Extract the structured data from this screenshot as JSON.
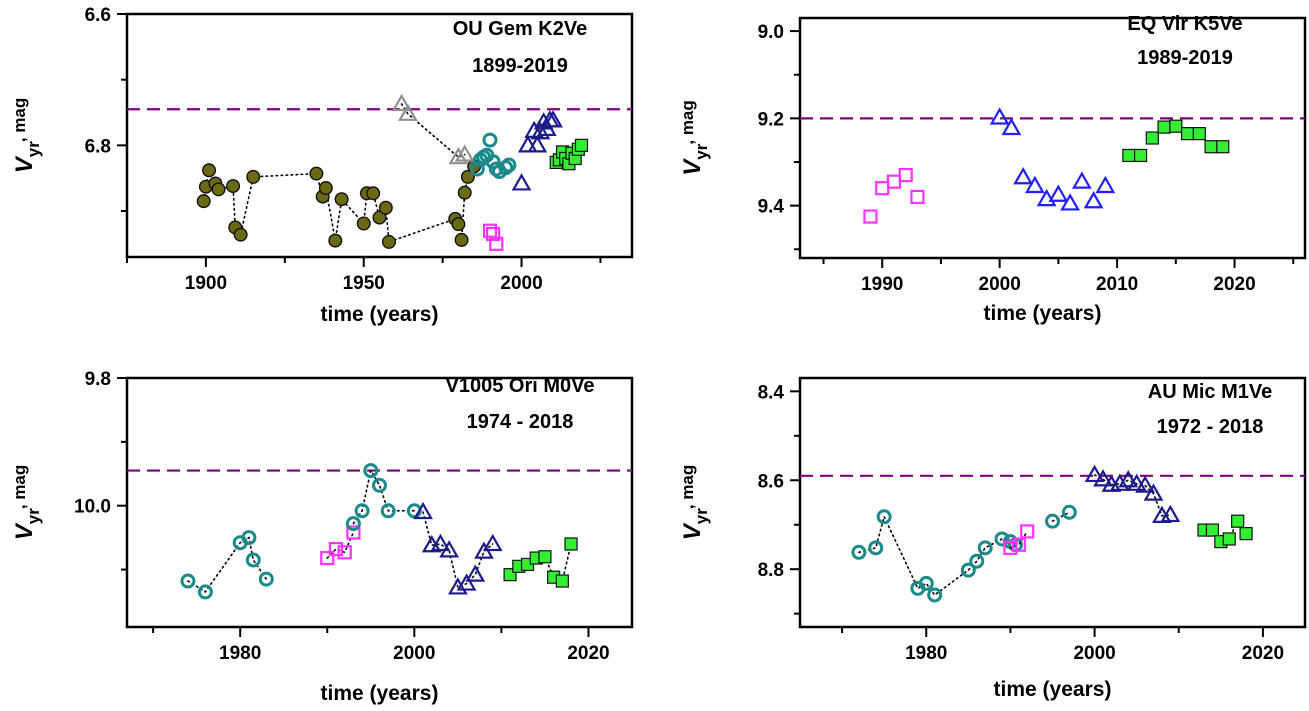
{
  "chart_data": [
    {
      "type": "scatter",
      "title": "OU Gem  K2Ve",
      "subtitle": "1899-2019",
      "xlabel": "time (years)",
      "ylabel": "V",
      "ylabel_sub": "yr",
      "ylabel_unit": ", mag",
      "xlim": [
        1875,
        2035
      ],
      "ylim": [
        6.6,
        6.97
      ],
      "y_inverted": true,
      "xticks": [
        1900,
        1950,
        2000
      ],
      "yticks": [
        6.6,
        6.8
      ],
      "ytick_labels": [
        "6.6",
        "6.8"
      ],
      "reference_line": 6.745,
      "reference_color": "#800080",
      "colors": {
        "olive": "#6b6a12",
        "gray": "#909090",
        "teal": "#1b8a8a",
        "navy": "#1c1c8c",
        "magenta": "#ff33ff",
        "green": "#33ee33"
      },
      "series": [
        {
          "marker": "filled-circle",
          "color": "olive",
          "connected": true,
          "x": [
            1899.3,
            1900,
            1901,
            1903,
            1904,
            1908.6,
            1909.3,
            1911,
            1915,
            1935,
            1937,
            1938,
            1941,
            1943,
            1950,
            1951,
            1953,
            1955,
            1957,
            1958,
            1979,
            1980,
            1981,
            1982,
            1983,
            1985
          ],
          "y": [
            6.885,
            6.863,
            6.838,
            6.858,
            6.867,
            6.862,
            6.925,
            6.936,
            6.848,
            6.843,
            6.878,
            6.865,
            6.945,
            6.882,
            6.919,
            6.873,
            6.873,
            6.91,
            6.895,
            6.947,
            6.912,
            6.92,
            6.944,
            6.872,
            6.848,
            6.832
          ]
        },
        {
          "marker": "open-triangle",
          "color": "gray",
          "connected": true,
          "x": [
            1962,
            1964,
            1980,
            1982
          ],
          "y": [
            6.737,
            6.752,
            6.818,
            6.814
          ]
        },
        {
          "marker": "open-circle",
          "color": "teal",
          "connected": false,
          "x": [
            1986,
            1987,
            1988,
            1989,
            1990,
            1991,
            1992,
            1993,
            1995,
            1996
          ],
          "y": [
            6.836,
            6.822,
            6.818,
            6.815,
            6.792,
            6.825,
            6.836,
            6.84,
            6.834,
            6.83
          ]
        },
        {
          "marker": "open-square",
          "color": "magenta",
          "connected": false,
          "x": [
            1990,
            1991,
            1992
          ],
          "y": [
            6.93,
            6.935,
            6.95
          ]
        },
        {
          "marker": "open-triangle",
          "color": "navy",
          "connected": false,
          "x": [
            2000,
            2002,
            2004,
            2005,
            2006,
            2007,
            2008,
            2009,
            2010
          ],
          "y": [
            6.858,
            6.8,
            6.778,
            6.8,
            6.78,
            6.765,
            6.775,
            6.762,
            6.762
          ]
        },
        {
          "marker": "filled-square",
          "color": "green",
          "connected": false,
          "x": [
            2011,
            2012,
            2013,
            2014,
            2015,
            2016,
            2017,
            2018,
            2019
          ],
          "y": [
            6.826,
            6.822,
            6.81,
            6.82,
            6.828,
            6.812,
            6.82,
            6.806,
            6.8
          ]
        }
      ]
    },
    {
      "type": "scatter",
      "title": "EQ Vir   K5Ve",
      "subtitle": "1989-2019",
      "xlabel": "time (years)",
      "ylabel": "V",
      "ylabel_sub": "yr",
      "ylabel_unit": ", mag",
      "xlim": [
        1983,
        2026
      ],
      "ylim": [
        8.97,
        9.52
      ],
      "y_inverted": true,
      "xticks": [
        1990,
        2000,
        2010,
        2020
      ],
      "yticks": [
        9.0,
        9.2,
        9.4
      ],
      "ytick_labels": [
        "9.0",
        "9.2",
        "9.4"
      ],
      "reference_line": 9.2,
      "reference_color": "#800080",
      "colors": {
        "navy": "#1c1c8c",
        "blue": "#1f1fff",
        "magenta": "#ff33ff",
        "green": "#33ee33"
      },
      "series": [
        {
          "marker": "open-square",
          "color": "magenta",
          "connected": false,
          "x": [
            1989,
            1990,
            1991,
            1992,
            1993
          ],
          "y": [
            9.425,
            9.36,
            9.345,
            9.33,
            9.38
          ]
        },
        {
          "marker": "open-triangle",
          "color": "blue",
          "connected": false,
          "x": [
            2000,
            2001,
            2002,
            2003,
            2004,
            2005,
            2006,
            2007,
            2008,
            2009
          ],
          "y": [
            9.198,
            9.222,
            9.335,
            9.355,
            9.385,
            9.375,
            9.395,
            9.345,
            9.39,
            9.355
          ]
        },
        {
          "marker": "filled-square",
          "color": "green",
          "connected": false,
          "x": [
            2011,
            2012,
            2013,
            2014,
            2015,
            2016,
            2017,
            2018,
            2019
          ],
          "y": [
            9.285,
            9.285,
            9.245,
            9.22,
            9.218,
            9.235,
            9.235,
            9.265,
            9.265
          ]
        }
      ]
    },
    {
      "type": "scatter",
      "title": "V1005 Ori  M0Ve",
      "subtitle": "1974 - 2018",
      "xlabel": "time (years)",
      "ylabel": "V",
      "ylabel_sub": "yr",
      "ylabel_unit": ", mag",
      "xlim": [
        1967,
        2025
      ],
      "ylim": [
        9.8,
        10.19
      ],
      "y_inverted": true,
      "xticks": [
        1980,
        2000,
        2020
      ],
      "yticks": [
        9.8,
        10.0
      ],
      "ytick_labels": [
        "9.8",
        "10.0"
      ],
      "reference_line": 9.945,
      "reference_color": "#800080",
      "colors": {
        "teal": "#1b8a8a",
        "navy": "#1c1c8c",
        "magenta": "#ff33ff",
        "green": "#33ee33"
      },
      "series": [
        {
          "marker": "open-circle",
          "color": "teal",
          "connected": true,
          "x": [
            1974,
            1976,
            1980,
            1981,
            1981.5,
            1983
          ],
          "y": [
            10.118,
            10.135,
            10.058,
            10.05,
            10.085,
            10.115
          ]
        },
        {
          "marker": "open-square",
          "color": "magenta",
          "connected": true,
          "x": [
            1990,
            1991,
            1992,
            1993
          ],
          "y": [
            10.082,
            10.068,
            10.073,
            10.042
          ]
        },
        {
          "marker": "open-circle",
          "color": "teal",
          "connected": true,
          "x": [
            1993,
            1994,
            1995,
            1996,
            1997,
            2000
          ],
          "y": [
            10.028,
            10.008,
            9.945,
            9.968,
            10.008,
            10.008
          ]
        },
        {
          "marker": "open-triangle",
          "color": "navy",
          "connected": true,
          "x": [
            2001,
            2002,
            2003,
            2004,
            2005,
            2006,
            2007,
            2008,
            2009
          ],
          "y": [
            10.01,
            10.062,
            10.06,
            10.07,
            10.128,
            10.122,
            10.108,
            10.072,
            10.06
          ]
        },
        {
          "marker": "filled-square",
          "color": "green",
          "connected": true,
          "x": [
            2011,
            2012,
            2013,
            2014,
            2015,
            2016,
            2017,
            2018
          ],
          "y": [
            10.108,
            10.095,
            10.092,
            10.082,
            10.08,
            10.112,
            10.118,
            10.06
          ]
        }
      ]
    },
    {
      "type": "scatter",
      "title": "AU Mic  M1Ve",
      "subtitle": "1972 - 2018",
      "xlabel": "time (years)",
      "ylabel": "V",
      "ylabel_sub": "yr",
      "ylabel_unit": ", mag",
      "xlim": [
        1965,
        2025
      ],
      "ylim": [
        8.37,
        8.93
      ],
      "y_inverted": true,
      "xticks": [
        1980,
        2000,
        2020
      ],
      "yticks": [
        8.4,
        8.6,
        8.8
      ],
      "ytick_labels": [
        "8.4",
        "8.6",
        "8.8"
      ],
      "reference_line": 8.59,
      "reference_color": "#800080",
      "colors": {
        "teal": "#1b8a8a",
        "navy": "#1c1c8c",
        "magenta": "#ff33ff",
        "green": "#33ee33"
      },
      "series": [
        {
          "marker": "open-circle",
          "color": "teal",
          "connected": true,
          "x": [
            1972,
            1974,
            1975,
            1979,
            1980,
            1981,
            1985,
            1986,
            1987,
            1989,
            1990,
            1990.6
          ],
          "y": [
            8.762,
            8.752,
            8.682,
            8.843,
            8.832,
            8.858,
            8.802,
            8.782,
            8.752,
            8.732,
            8.738,
            8.745
          ]
        },
        {
          "marker": "open-square",
          "color": "magenta",
          "connected": true,
          "x": [
            1990,
            1991,
            1992
          ],
          "y": [
            8.752,
            8.745,
            8.715
          ]
        },
        {
          "marker": "open-circle",
          "color": "teal",
          "connected": true,
          "x": [
            1995,
            1997
          ],
          "y": [
            8.692,
            8.672
          ]
        },
        {
          "marker": "open-triangle",
          "color": "navy",
          "connected": true,
          "x": [
            2000,
            2001,
            2002,
            2003,
            2004,
            2005,
            2006,
            2007,
            2008,
            2009
          ],
          "y": [
            8.588,
            8.598,
            8.61,
            8.608,
            8.6,
            8.608,
            8.612,
            8.63,
            8.68,
            8.678
          ]
        },
        {
          "marker": "filled-square",
          "color": "green",
          "connected": true,
          "x": [
            2013,
            2014,
            2015,
            2016,
            2017,
            2018
          ],
          "y": [
            8.712,
            8.712,
            8.738,
            8.732,
            8.692,
            8.72
          ]
        }
      ]
    }
  ]
}
